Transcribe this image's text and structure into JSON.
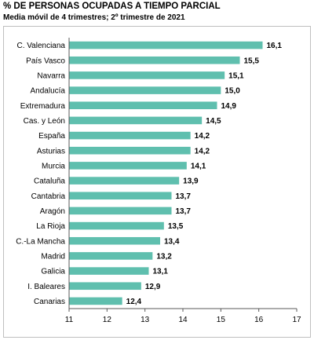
{
  "chart_data": {
    "type": "bar",
    "orientation": "horizontal",
    "title": "% DE PERSONAS OCUPADAS A TIEMPO PARCIAL",
    "subtitle": "Media móvil de 4 trimestres; 2º trimestre de 2021",
    "categories": [
      "C. Valenciana",
      "País Vasco",
      "Navarra",
      "Andalucía",
      "Extremadura",
      "Cas. y León",
      "España",
      "Asturias",
      "Murcia",
      "Cataluña",
      "Cantabria",
      "Aragón",
      "La Rioja",
      "C.-La Mancha",
      "Madrid",
      "Galicia",
      "I. Baleares",
      "Canarias"
    ],
    "values": [
      16.1,
      15.5,
      15.1,
      15.0,
      14.9,
      14.5,
      14.2,
      14.2,
      14.1,
      13.9,
      13.7,
      13.7,
      13.5,
      13.4,
      13.2,
      13.1,
      12.9,
      12.4
    ],
    "value_labels": [
      "16,1",
      "15,5",
      "15,1",
      "15,0",
      "14,9",
      "14,5",
      "14,2",
      "14,2",
      "14,1",
      "13,9",
      "13,7",
      "13,7",
      "13,5",
      "13,4",
      "13,2",
      "13,1",
      "12,9",
      "12,4"
    ],
    "xlim": [
      11,
      17
    ],
    "xticks": [
      "11",
      "12",
      "13",
      "14",
      "15",
      "16",
      "17"
    ],
    "grid": false,
    "legend": "none",
    "bar_color": "#5fbfae"
  }
}
